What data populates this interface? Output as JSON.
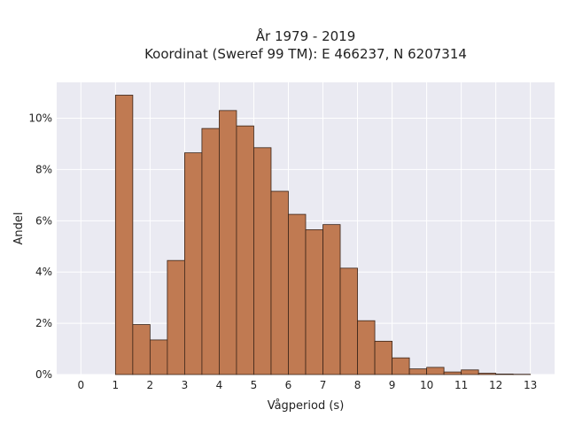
{
  "chart_data": {
    "type": "bar",
    "title": "År 1979 - 2019",
    "subtitle": "Koordinat (Sweref 99 TM): E 466237, N 6207314",
    "xlabel": "Vågperiod (s)",
    "ylabel": "Andel",
    "xlim": [
      -0.7,
      13.7
    ],
    "ylim": [
      0,
      11.4
    ],
    "xticks": [
      0,
      1,
      2,
      3,
      4,
      5,
      6,
      7,
      8,
      9,
      10,
      11,
      12,
      13
    ],
    "xtick_labels": [
      "0",
      "1",
      "2",
      "3",
      "4",
      "5",
      "6",
      "7",
      "8",
      "9",
      "10",
      "11",
      "12",
      "13"
    ],
    "yticks": [
      0,
      2,
      4,
      6,
      8,
      10
    ],
    "ytick_labels": [
      "0%",
      "2%",
      "4%",
      "6%",
      "8%",
      "10%"
    ],
    "bin_width": 0.5,
    "bin_starts": [
      1.0,
      1.5,
      2.0,
      2.5,
      3.0,
      3.5,
      4.0,
      4.5,
      5.0,
      5.5,
      6.0,
      6.5,
      7.0,
      7.5,
      8.0,
      8.5,
      9.0,
      9.5,
      10.0,
      10.5,
      11.0,
      11.5,
      12.0,
      12.5
    ],
    "values": [
      10.9,
      1.95,
      1.35,
      4.45,
      8.65,
      9.6,
      10.3,
      9.7,
      8.85,
      7.15,
      6.25,
      5.65,
      5.85,
      4.15,
      2.1,
      1.3,
      0.65,
      0.22,
      0.28,
      0.1,
      0.18,
      0.05,
      0.02,
      0.01
    ],
    "grid": true,
    "colors": {
      "bar_fill": "#c07a52",
      "bar_edge": "#3a2418",
      "plot_background": "#eaeaf2",
      "grid": "#ffffff"
    }
  }
}
